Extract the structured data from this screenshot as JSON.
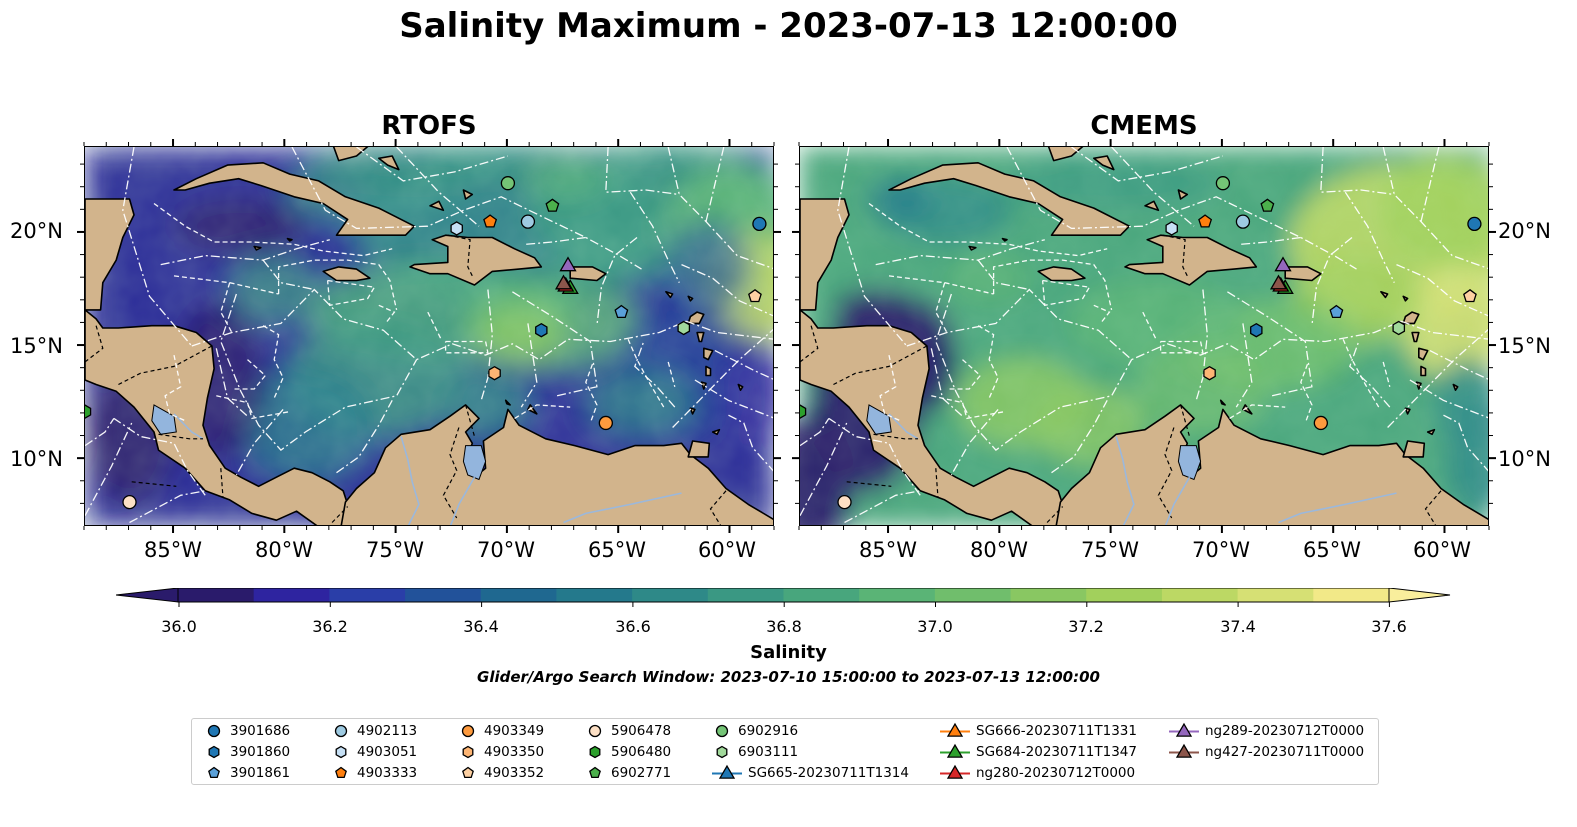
{
  "figure": {
    "title": "Salinity Maximum - 2023-07-13 12:00:00",
    "panels": [
      {
        "title": "RTOFS",
        "model": "rtofs"
      },
      {
        "title": "CMEMS",
        "model": "cmems"
      }
    ],
    "lon_ticks": [
      "85°W",
      "80°W",
      "75°W",
      "70°W",
      "65°W",
      "60°W"
    ],
    "lat_ticks": [
      "20°N",
      "15°N",
      "10°N"
    ],
    "colorbar": {
      "label": "Salinity",
      "ticks": [
        "36.0",
        "36.2",
        "36.4",
        "36.6",
        "36.8",
        "37.0",
        "37.2",
        "37.4",
        "37.6"
      ],
      "colors": [
        "#2a1b6b",
        "#2e24a0",
        "#2a3ea8",
        "#22529a",
        "#1f6890",
        "#24798c",
        "#2e8988",
        "#3a9883",
        "#48a67d",
        "#5ab476",
        "#70be6c",
        "#89c762",
        "#a2d05c",
        "#bcd864",
        "#d6e074",
        "#f2e988",
        "#f9ee9c"
      ]
    },
    "search_window": "Glider/Argo Search Window: 2023-07-10 15:00:00 to 2023-07-13 12:00:00",
    "legend": [
      {
        "label": "3901686",
        "marker": "circle",
        "color": "#1f77b4"
      },
      {
        "label": "3901860",
        "marker": "hexagon",
        "color": "#1f77b4"
      },
      {
        "label": "3901861",
        "marker": "pentagon",
        "color": "#5aa0d8"
      },
      {
        "label": "4902113",
        "marker": "circle",
        "color": "#9ecae1"
      },
      {
        "label": "4903051",
        "marker": "hexagon",
        "color": "#c6e0f5"
      },
      {
        "label": "4903333",
        "marker": "pentagon",
        "color": "#ff7f0e"
      },
      {
        "label": "4903349",
        "marker": "circle",
        "color": "#fd9a3e"
      },
      {
        "label": "4903350",
        "marker": "hexagon",
        "color": "#fdb574"
      },
      {
        "label": "4903352",
        "marker": "pentagon",
        "color": "#fdd0a2"
      },
      {
        "label": "5906478",
        "marker": "circle",
        "color": "#fde0c5"
      },
      {
        "label": "5906480",
        "marker": "hexagon",
        "color": "#2ca02c"
      },
      {
        "label": "6902771",
        "marker": "pentagon",
        "color": "#4cb04c"
      },
      {
        "label": "6902916",
        "marker": "circle",
        "color": "#74c476"
      },
      {
        "label": "6903111",
        "marker": "hexagon",
        "color": "#a1d99b"
      },
      {
        "label": "SG665-20230711T1314",
        "marker": "triangle-line",
        "color": "#1f77b4"
      },
      {
        "label": "SG666-20230711T1331",
        "marker": "triangle-line",
        "color": "#ff7f0e"
      },
      {
        "label": "SG684-20230711T1347",
        "marker": "triangle-line",
        "color": "#2ca02c"
      },
      {
        "label": "ng280-20230712T0000",
        "marker": "triangle-line",
        "color": "#d62728"
      },
      {
        "label": "ng289-20230712T0000",
        "marker": "triangle-line",
        "color": "#9467bd"
      },
      {
        "label": "ng427-20230711T0000",
        "marker": "triangle-line",
        "color": "#8c564b"
      }
    ]
  },
  "map_data": {
    "extent": {
      "lon": [
        -89,
        -58
      ],
      "lat": [
        7,
        23.8
      ]
    },
    "floats": [
      {
        "id": "3901686",
        "lon": -58.7,
        "lat": 20.4,
        "marker": "circle",
        "color": "#1f77b4"
      },
      {
        "id": "3901860",
        "lon": -68.5,
        "lat": 15.7,
        "marker": "hexagon",
        "color": "#1f77b4"
      },
      {
        "id": "3901861",
        "lon": -64.9,
        "lat": 16.5,
        "marker": "pentagon",
        "color": "#5aa0d8"
      },
      {
        "id": "4902113",
        "lon": -69.1,
        "lat": 20.5,
        "marker": "circle",
        "color": "#9ecae1"
      },
      {
        "id": "4903051",
        "lon": -72.3,
        "lat": 20.2,
        "marker": "hexagon",
        "color": "#c6e0f5"
      },
      {
        "id": "4903333",
        "lon": -70.8,
        "lat": 20.5,
        "marker": "pentagon",
        "color": "#ff7f0e"
      },
      {
        "id": "4903349",
        "lon": -65.6,
        "lat": 11.6,
        "marker": "circle",
        "color": "#fd9a3e"
      },
      {
        "id": "4903350",
        "lon": -70.6,
        "lat": 13.8,
        "marker": "hexagon",
        "color": "#fdb574"
      },
      {
        "id": "4903352",
        "lon": -58.9,
        "lat": 17.2,
        "marker": "pentagon",
        "color": "#fdd0a2"
      },
      {
        "id": "5906478",
        "lon": -87.0,
        "lat": 8.1,
        "marker": "circle",
        "color": "#fde0c5"
      },
      {
        "id": "5906480",
        "lon": -89.0,
        "lat": 12.1,
        "marker": "hexagon",
        "color": "#2ca02c"
      },
      {
        "id": "6902771",
        "lon": -68.0,
        "lat": 21.2,
        "marker": "pentagon",
        "color": "#4cb04c"
      },
      {
        "id": "6902916",
        "lon": -70.0,
        "lat": 22.2,
        "marker": "circle",
        "color": "#74c476"
      },
      {
        "id": "6903111",
        "lon": -62.1,
        "lat": 15.8,
        "marker": "hexagon",
        "color": "#a1d99b"
      }
    ],
    "gliders": [
      {
        "id": "SG684-20230711T1347",
        "lon": -67.2,
        "lat": 17.6,
        "color": "#2ca02c"
      },
      {
        "id": "ng280-20230712T0000",
        "lon": -67.4,
        "lat": 17.7,
        "color": "#d62728"
      },
      {
        "id": "ng427-20230711T0000",
        "lon": -67.5,
        "lat": 17.8,
        "color": "#8c564b"
      },
      {
        "id": "ng289-20230712T0000",
        "lon": -67.3,
        "lat": 18.6,
        "color": "#9467bd"
      }
    ]
  }
}
